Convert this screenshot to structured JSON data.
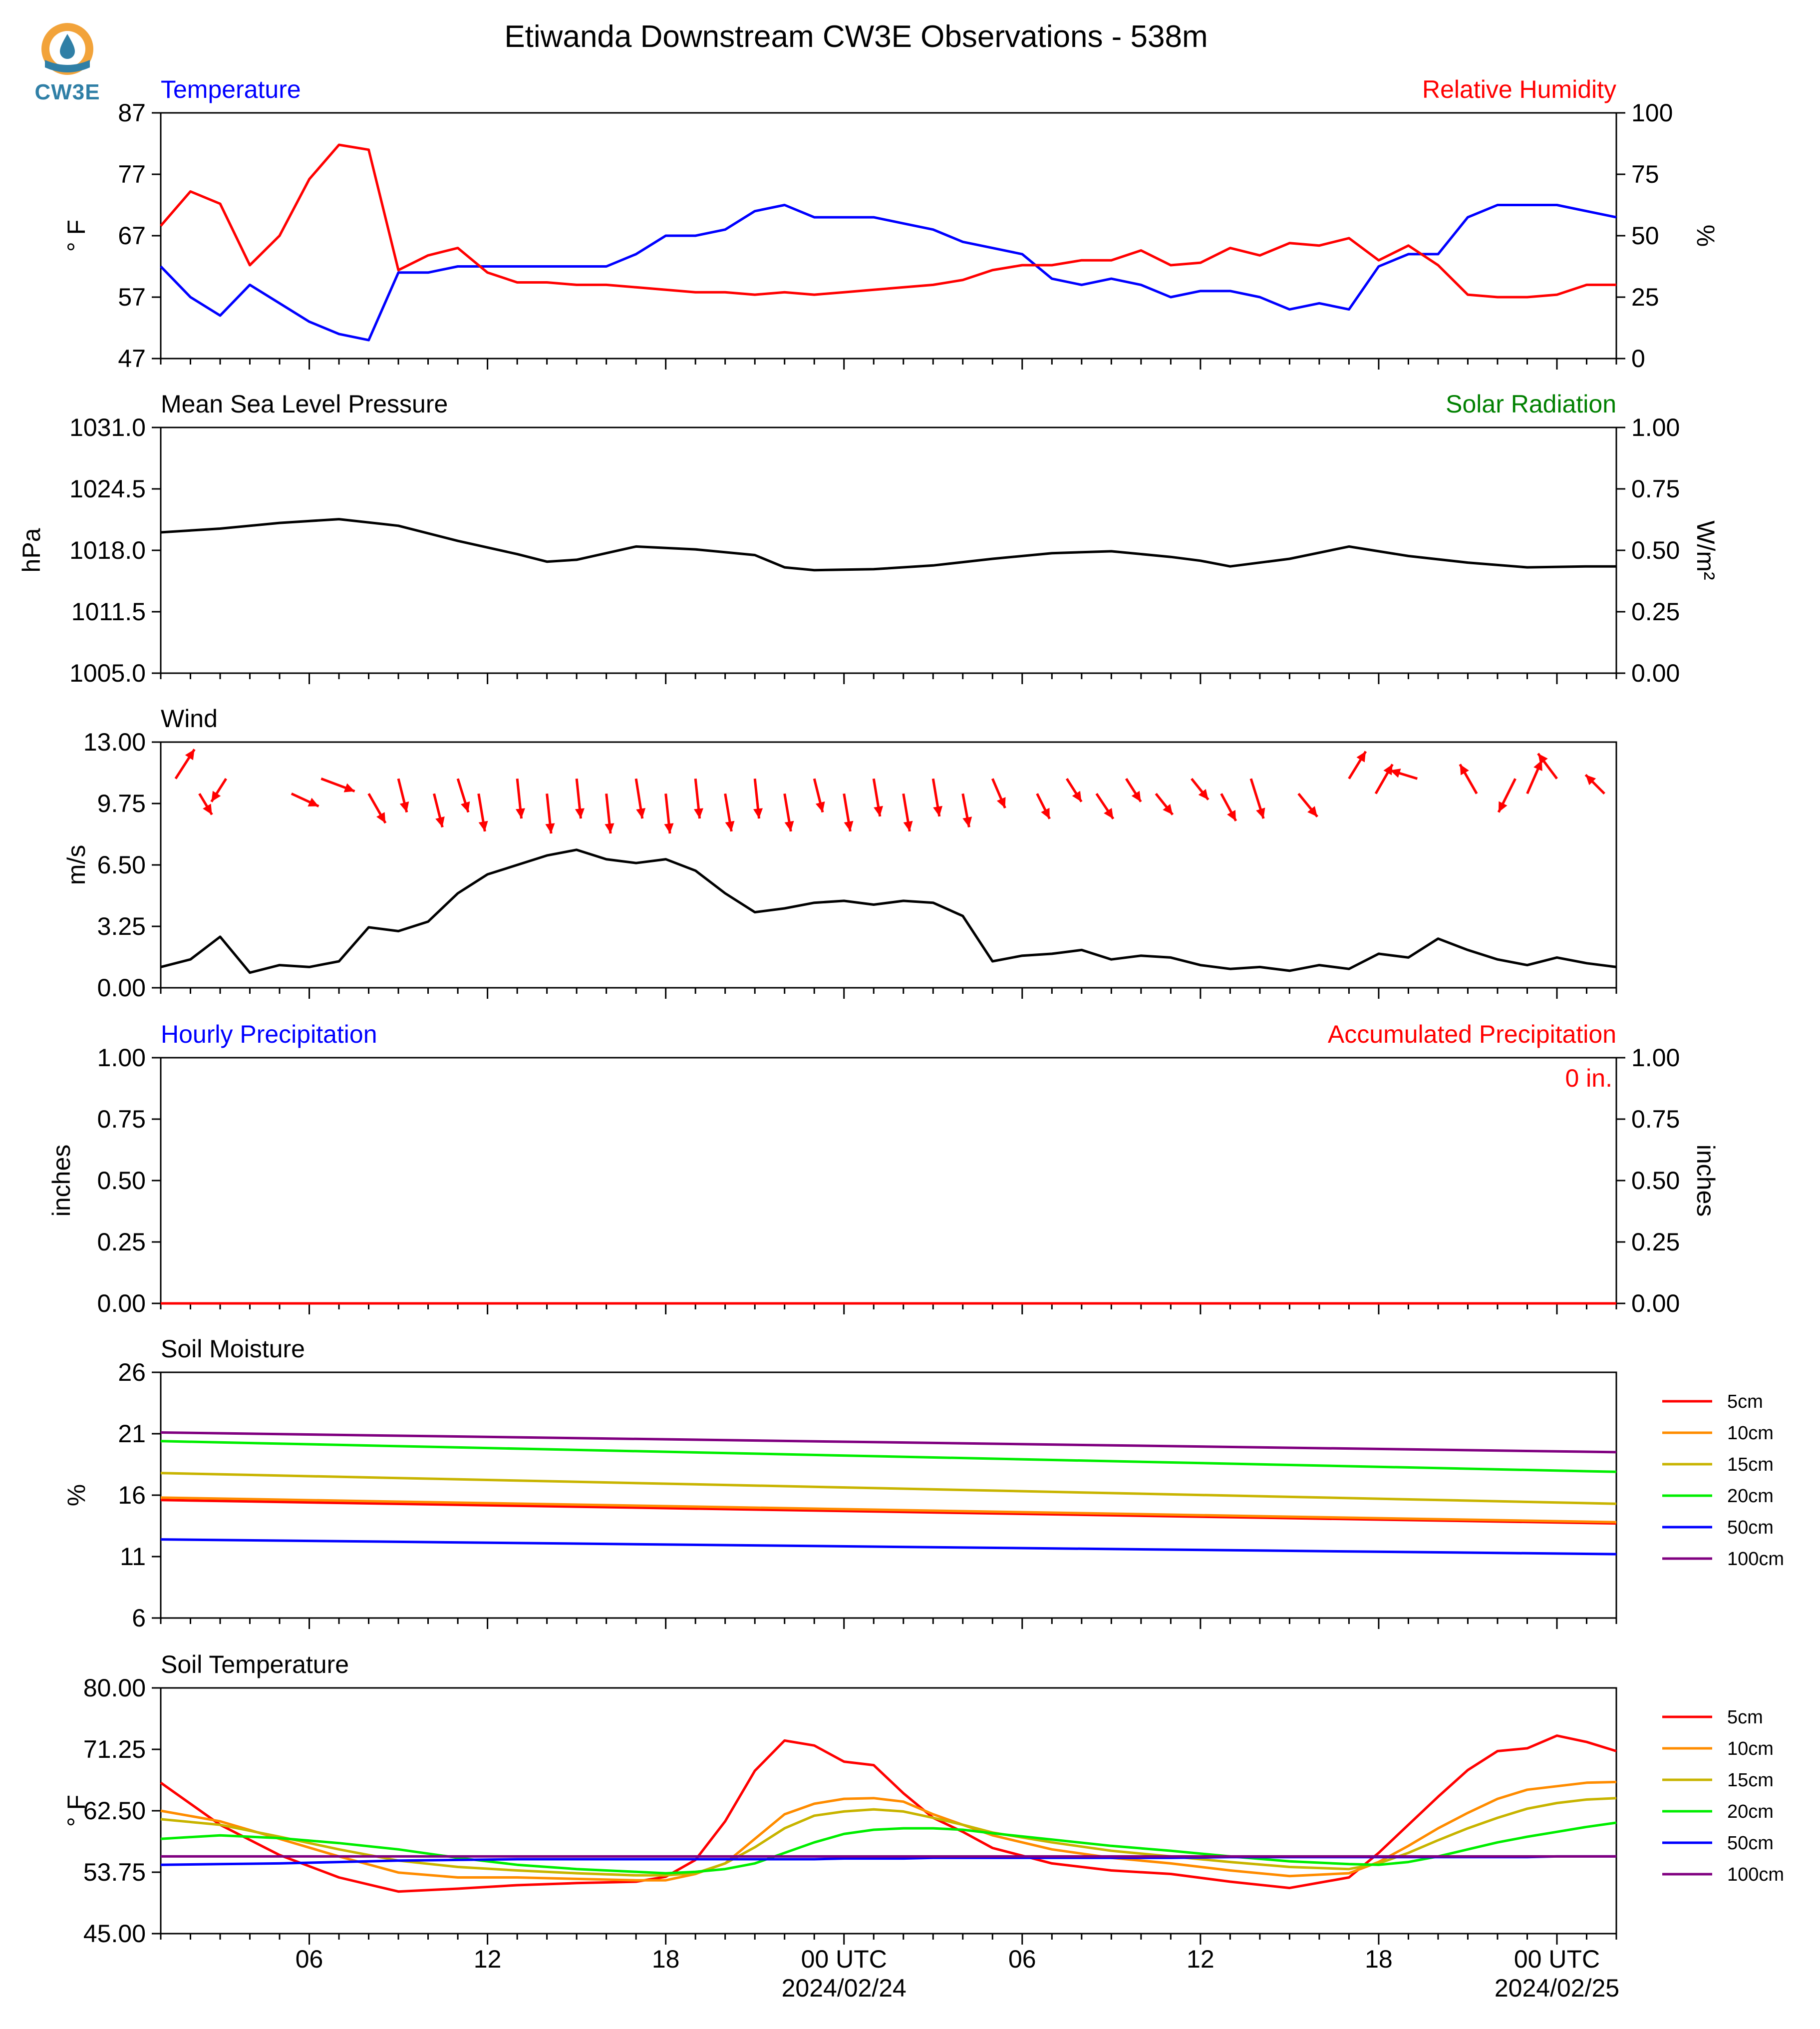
{
  "title": "Etiwanda Downstream CW3E Observations - 538m",
  "logo": {
    "text": "CW3E",
    "icon": "cw3e-logo-icon"
  },
  "colors": {
    "red": "#ff0000",
    "blue": "#0000ff",
    "green": "#008000",
    "black": "#000000"
  },
  "x_axis": {
    "ticks": [
      "06",
      "12",
      "18",
      "00 UTC",
      "06",
      "12",
      "18",
      "00 UTC"
    ],
    "dates": [
      "2024/02/24",
      "2024/02/25"
    ]
  },
  "chart_data": [
    {
      "type": "line",
      "panel": "temperature",
      "title_left": "Temperature",
      "title_right": "Relative Humidity",
      "ylabel_left": "° F",
      "ylabel_right": "%",
      "ylim_left": [
        47,
        87
      ],
      "ylim_right": [
        0,
        100
      ],
      "yticks_left": [
        "87",
        "77",
        "67",
        "57",
        "47"
      ],
      "yticks_right": [
        "100",
        "75",
        "50",
        "25",
        "0"
      ],
      "x_hours": [
        0,
        1,
        2,
        3,
        4,
        5,
        6,
        7,
        8,
        9,
        10,
        11,
        12,
        13,
        14,
        15,
        16,
        17,
        18,
        19,
        20,
        21,
        22,
        23,
        24,
        25,
        26,
        27,
        28,
        29,
        30,
        31,
        32,
        33,
        34,
        35,
        36,
        37,
        38,
        39,
        40,
        41,
        42,
        43,
        44,
        45,
        46,
        47,
        48,
        49
      ],
      "series": [
        {
          "name": "Temperature",
          "axis": "left",
          "color": "#0000ff",
          "values": [
            62,
            57,
            54,
            59,
            56,
            53,
            51,
            50,
            61,
            61,
            62,
            62,
            62,
            62,
            62,
            62,
            64,
            67,
            67,
            68,
            71,
            72,
            70,
            70,
            70,
            69,
            68,
            66,
            65,
            64,
            60,
            59,
            60,
            59,
            57,
            58,
            58,
            57,
            55,
            56,
            55,
            62,
            64,
            64,
            70,
            72,
            72,
            72,
            71,
            70
          ]
        },
        {
          "name": "Relative Humidity",
          "axis": "right",
          "color": "#ff0000",
          "values": [
            54,
            68,
            63,
            38,
            50,
            73,
            87,
            85,
            36,
            42,
            45,
            35,
            31,
            31,
            30,
            30,
            29,
            28,
            27,
            27,
            26,
            27,
            26,
            27,
            28,
            29,
            30,
            32,
            36,
            38,
            38,
            40,
            40,
            44,
            38,
            39,
            45,
            42,
            47,
            46,
            49,
            40,
            46,
            38,
            26,
            25,
            25,
            26,
            30,
            30
          ]
        }
      ]
    },
    {
      "type": "line",
      "panel": "pressure",
      "title_left": "Mean Sea Level Pressure",
      "title_right": "Solar Radiation",
      "ylabel_left": "hPa",
      "ylabel_right": "W/m²",
      "ylim_left": [
        1005.0,
        1031.0
      ],
      "ylim_right": [
        0.0,
        1.0
      ],
      "yticks_left": [
        "1031.0",
        "1024.5",
        "1018.0",
        "1011.5",
        "1005.0"
      ],
      "yticks_right": [
        "1.00",
        "0.75",
        "0.50",
        "0.25",
        "0.00"
      ],
      "x_hours": [
        0,
        2,
        4,
        6,
        8,
        10,
        12,
        13,
        14,
        16,
        18,
        20,
        21,
        22,
        24,
        26,
        28,
        30,
        32,
        34,
        35,
        36,
        38,
        40,
        42,
        44,
        46,
        48,
        49
      ],
      "series": [
        {
          "name": "Mean Sea Level Pressure",
          "axis": "left",
          "color": "#000000",
          "values": [
            1019.9,
            1020.3,
            1020.9,
            1021.3,
            1020.6,
            1019.0,
            1017.6,
            1016.8,
            1017.0,
            1018.4,
            1018.1,
            1017.5,
            1016.2,
            1015.9,
            1016.0,
            1016.4,
            1017.1,
            1017.7,
            1017.9,
            1017.3,
            1016.9,
            1016.3,
            1017.1,
            1018.4,
            1017.4,
            1016.7,
            1016.2,
            1016.3,
            1016.3
          ]
        }
      ]
    },
    {
      "type": "line",
      "panel": "wind",
      "title_left": "Wind",
      "ylabel_left": "m/s",
      "ylim_left": [
        0.0,
        13.0
      ],
      "yticks_left": [
        "13.00",
        "9.75",
        "6.50",
        "3.25",
        "0.00"
      ],
      "x_hours": [
        0,
        1,
        2,
        3,
        4,
        5,
        6,
        7,
        8,
        9,
        10,
        11,
        12,
        13,
        14,
        15,
        16,
        17,
        18,
        19,
        20,
        21,
        22,
        23,
        24,
        25,
        26,
        27,
        28,
        29,
        30,
        31,
        32,
        33,
        34,
        35,
        36,
        37,
        38,
        39,
        40,
        41,
        42,
        43,
        44,
        45,
        46,
        47,
        48,
        49
      ],
      "series": [
        {
          "name": "Wind Speed",
          "axis": "left",
          "color": "#000000",
          "values": [
            1.1,
            1.5,
            2.7,
            0.8,
            1.2,
            1.1,
            1.4,
            3.2,
            3.0,
            3.5,
            5.0,
            6.0,
            6.5,
            7.0,
            7.3,
            6.8,
            6.6,
            6.8,
            6.2,
            5.0,
            4.0,
            4.2,
            4.5,
            4.6,
            4.4,
            4.6,
            4.5,
            3.8,
            1.4,
            1.7,
            1.8,
            2.0,
            1.5,
            1.7,
            1.6,
            1.2,
            1.0,
            1.1,
            0.9,
            1.2,
            1.0,
            1.8,
            1.6,
            2.6,
            2.0,
            1.5,
            1.2,
            1.6,
            1.3,
            1.1
          ]
        }
      ],
      "wind_barbs": {
        "color": "#ff0000",
        "x_hours": [
          0.5,
          1.3,
          2.2,
          4.4,
          5.4,
          7.0,
          8.0,
          9.2,
          10.0,
          10.7,
          12.0,
          13.0,
          14.0,
          15.0,
          16.0,
          17.0,
          18.0,
          19.0,
          20.0,
          21.0,
          22.0,
          23.0,
          24.0,
          25.0,
          26.0,
          27.0,
          28.0,
          29.5,
          30.5,
          31.5,
          32.5,
          33.5,
          34.7,
          35.7,
          36.7,
          38.3,
          40.0,
          40.9,
          42.3,
          44.3,
          45.6,
          46.0,
          47.0,
          48.6
        ],
        "dx": [
          0.9,
          0.6,
          -0.7,
          1.3,
          1.6,
          0.8,
          0.4,
          0.4,
          0.5,
          0.3,
          0.2,
          0.2,
          0.2,
          0.2,
          0.3,
          0.2,
          0.2,
          0.3,
          0.2,
          0.3,
          0.4,
          0.3,
          0.3,
          0.3,
          0.3,
          0.3,
          0.6,
          0.6,
          0.7,
          0.8,
          0.7,
          0.8,
          0.8,
          0.7,
          0.6,
          0.9,
          0.8,
          0.8,
          -1.3,
          -0.8,
          -0.8,
          0.7,
          -0.9,
          -0.9
        ],
        "dy": [
          1.4,
          -1.0,
          -1.1,
          -0.6,
          -0.6,
          -1.4,
          -1.6,
          -1.6,
          -1.6,
          -1.8,
          -1.9,
          -1.9,
          -1.9,
          -1.9,
          -1.9,
          -1.9,
          -1.9,
          -1.8,
          -1.9,
          -1.8,
          -1.6,
          -1.8,
          -1.8,
          -1.8,
          -1.8,
          -1.6,
          -1.4,
          -1.2,
          -1.1,
          -1.2,
          -1.1,
          -1.0,
          -1.0,
          -1.3,
          -1.9,
          -1.1,
          1.3,
          1.4,
          0.4,
          1.4,
          -1.6,
          1.6,
          1.2,
          0.9
        ]
      }
    },
    {
      "type": "line",
      "panel": "precipitation",
      "title_left": "Hourly Precipitation",
      "title_right": "Accumulated Precipitation",
      "ylabel_left": "inches",
      "ylabel_right": "inches",
      "ylim_left": [
        0.0,
        1.0
      ],
      "ylim_right": [
        0.0,
        1.0
      ],
      "yticks_left": [
        "1.00",
        "0.75",
        "0.50",
        "0.25",
        "0.00"
      ],
      "yticks_right": [
        "1.00",
        "0.75",
        "0.50",
        "0.25",
        "0.00"
      ],
      "annotation": "0 in.",
      "x_hours": [
        0,
        49
      ],
      "series": [
        {
          "name": "Accumulated Precipitation",
          "axis": "right",
          "color": "#ff0000",
          "values": [
            0,
            0
          ]
        }
      ]
    },
    {
      "type": "line",
      "panel": "soil-moisture",
      "title_left": "Soil Moisture",
      "ylabel_left": "%",
      "ylim_left": [
        6,
        26
      ],
      "yticks_left": [
        "26",
        "21",
        "16",
        "11",
        "6"
      ],
      "x_hours": [
        0,
        49
      ],
      "series": [
        {
          "name": "5cm",
          "color": "#ff0000",
          "values": [
            15.6,
            13.7
          ]
        },
        {
          "name": "10cm",
          "color": "#ff8c00",
          "values": [
            15.8,
            13.8
          ]
        },
        {
          "name": "15cm",
          "color": "#c8b400",
          "values": [
            17.8,
            15.3
          ]
        },
        {
          "name": "20cm",
          "color": "#00ee00",
          "values": [
            20.4,
            17.9
          ]
        },
        {
          "name": "50cm",
          "color": "#0000ff",
          "values": [
            12.4,
            11.2
          ]
        },
        {
          "name": "100cm",
          "color": "#800080",
          "values": [
            21.1,
            19.5
          ]
        }
      ]
    },
    {
      "type": "line",
      "panel": "soil-temperature",
      "title_left": "Soil Temperature",
      "ylabel_left": "° F",
      "ylim_left": [
        45.0,
        80.0
      ],
      "yticks_left": [
        "80.00",
        "71.25",
        "62.50",
        "53.75",
        "45.00"
      ],
      "x_hours": [
        0,
        2,
        4,
        6,
        8,
        10,
        12,
        14,
        16,
        17,
        18,
        19,
        20,
        21,
        22,
        23,
        24,
        25,
        26,
        27,
        28,
        30,
        32,
        34,
        36,
        38,
        40,
        41,
        42,
        43,
        44,
        45,
        46,
        47,
        48,
        49
      ],
      "series": [
        {
          "name": "5cm",
          "color": "#ff0000",
          "values": [
            66.5,
            60.5,
            56.2,
            53.0,
            51.0,
            51.4,
            51.9,
            52.2,
            52.4,
            53.1,
            55.5,
            61.0,
            68.2,
            72.5,
            71.8,
            69.5,
            69.0,
            65.0,
            61.5,
            59.5,
            57.2,
            55.0,
            54.0,
            53.5,
            52.4,
            51.5,
            53.0,
            56.5,
            60.5,
            64.5,
            68.3,
            71.0,
            71.4,
            73.2,
            72.3,
            71.0
          ]
        },
        {
          "name": "10cm",
          "color": "#ff8c00",
          "values": [
            62.5,
            61.0,
            58.5,
            56.0,
            53.7,
            53.0,
            53.0,
            52.8,
            52.6,
            52.6,
            53.5,
            55.0,
            58.5,
            62.0,
            63.5,
            64.2,
            64.3,
            63.8,
            62.0,
            60.5,
            59.0,
            57.0,
            55.8,
            55.0,
            54.0,
            53.2,
            53.6,
            55.2,
            57.5,
            60.0,
            62.2,
            64.2,
            65.5,
            66.0,
            66.5,
            66.6
          ]
        },
        {
          "name": "15cm",
          "color": "#c8b400",
          "values": [
            61.3,
            60.5,
            58.8,
            57.0,
            55.4,
            54.5,
            54.0,
            53.6,
            53.3,
            53.3,
            53.6,
            55.0,
            57.3,
            60.0,
            61.8,
            62.4,
            62.7,
            62.4,
            61.5,
            60.5,
            59.4,
            58.0,
            56.8,
            56.0,
            55.2,
            54.5,
            54.2,
            55.0,
            56.5,
            58.3,
            60.0,
            61.5,
            62.8,
            63.6,
            64.1,
            64.3
          ]
        },
        {
          "name": "20cm",
          "color": "#00ee00",
          "values": [
            58.5,
            59.0,
            58.6,
            57.9,
            57.0,
            55.8,
            54.8,
            54.2,
            53.8,
            53.6,
            53.8,
            54.2,
            55.0,
            56.5,
            58.0,
            59.2,
            59.8,
            60.0,
            60.0,
            59.8,
            59.3,
            58.4,
            57.5,
            56.8,
            56.0,
            55.3,
            54.9,
            54.8,
            55.2,
            56.0,
            57.0,
            58.0,
            58.8,
            59.5,
            60.2,
            60.8
          ]
        },
        {
          "name": "50cm",
          "color": "#0000ff",
          "values": [
            54.8,
            54.9,
            55.0,
            55.2,
            55.4,
            55.5,
            55.6,
            55.6,
            55.6,
            55.6,
            55.6,
            55.6,
            55.6,
            55.6,
            55.6,
            55.7,
            55.7,
            55.7,
            55.8,
            55.8,
            55.8,
            55.8,
            55.8,
            55.8,
            55.9,
            55.9,
            55.9,
            55.9,
            55.9,
            55.9,
            55.9,
            55.9,
            55.9,
            56.0,
            56.0,
            56.0
          ]
        },
        {
          "name": "100cm",
          "color": "#800080",
          "values": [
            56.0,
            56.0,
            56.0,
            56.0,
            56.0,
            56.0,
            56.0,
            56.0,
            56.0,
            56.0,
            56.0,
            56.0,
            56.0,
            56.0,
            56.0,
            56.0,
            56.0,
            56.0,
            56.0,
            56.0,
            56.0,
            56.0,
            56.0,
            56.0,
            56.0,
            56.0,
            56.0,
            56.0,
            56.0,
            56.0,
            56.0,
            56.0,
            56.0,
            56.0,
            56.0,
            56.0
          ]
        }
      ]
    }
  ]
}
